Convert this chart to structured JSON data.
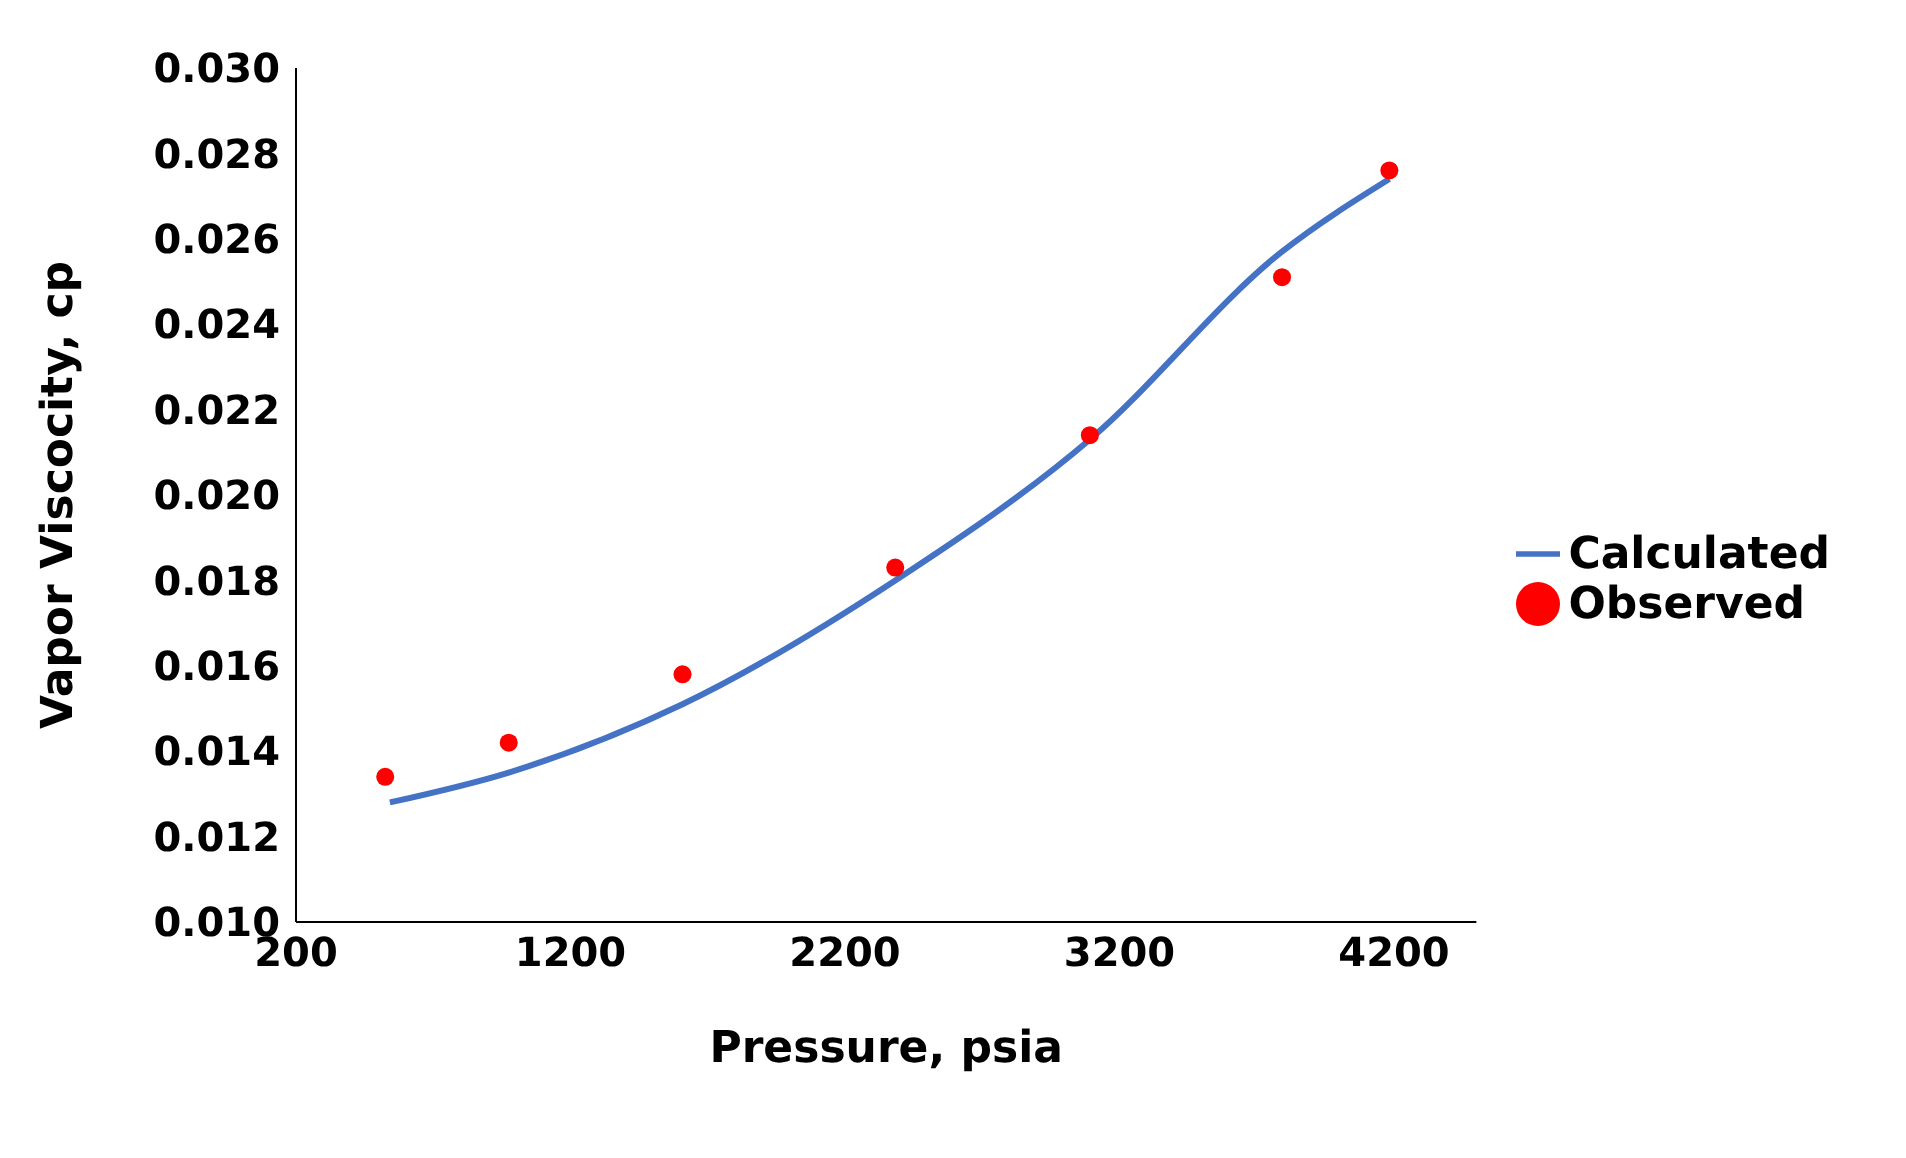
{
  "chart_data": {
    "type": "line",
    "xlabel": "Pressure, psia",
    "ylabel": "Vapor Viscocity, cp",
    "xlim": [
      200,
      4500
    ],
    "xticks": [
      200,
      1200,
      2200,
      3200,
      4200
    ],
    "ylim": [
      0.01,
      0.03
    ],
    "yticks": [
      {
        "value": 0.01,
        "label": "0.010"
      },
      {
        "value": 0.012,
        "label": "0.012"
      },
      {
        "value": 0.014,
        "label": "0.014"
      },
      {
        "value": 0.016,
        "label": "0.016"
      },
      {
        "value": 0.018,
        "label": "0.018"
      },
      {
        "value": 0.02,
        "label": "0.020"
      },
      {
        "value": 0.022,
        "label": "0.022"
      },
      {
        "value": 0.024,
        "label": "0.024"
      },
      {
        "value": 0.026,
        "label": "0.026"
      },
      {
        "value": 0.028,
        "label": "0.028"
      },
      {
        "value": 0.03,
        "label": "0.030"
      }
    ],
    "grid": false,
    "legend": "right",
    "series": [
      {
        "name": "Calculated",
        "color": "#4472c4",
        "marker": "none",
        "line_style": "solid",
        "x": [
          542,
          975,
          1608,
          2383,
          3092,
          3792,
          4183
        ],
        "values": [
          0.0128,
          0.0135,
          0.0151,
          0.018,
          0.0213,
          0.0257,
          0.0274
        ]
      },
      {
        "name": "Observed",
        "type": "scatter",
        "color": "#ff0000",
        "marker": "circle",
        "x": [
          525,
          975,
          1608,
          2383,
          3092,
          3792,
          4183
        ],
        "values": [
          0.0134,
          0.0142,
          0.0158,
          0.0183,
          0.0214,
          0.0251,
          0.0276
        ]
      }
    ]
  }
}
